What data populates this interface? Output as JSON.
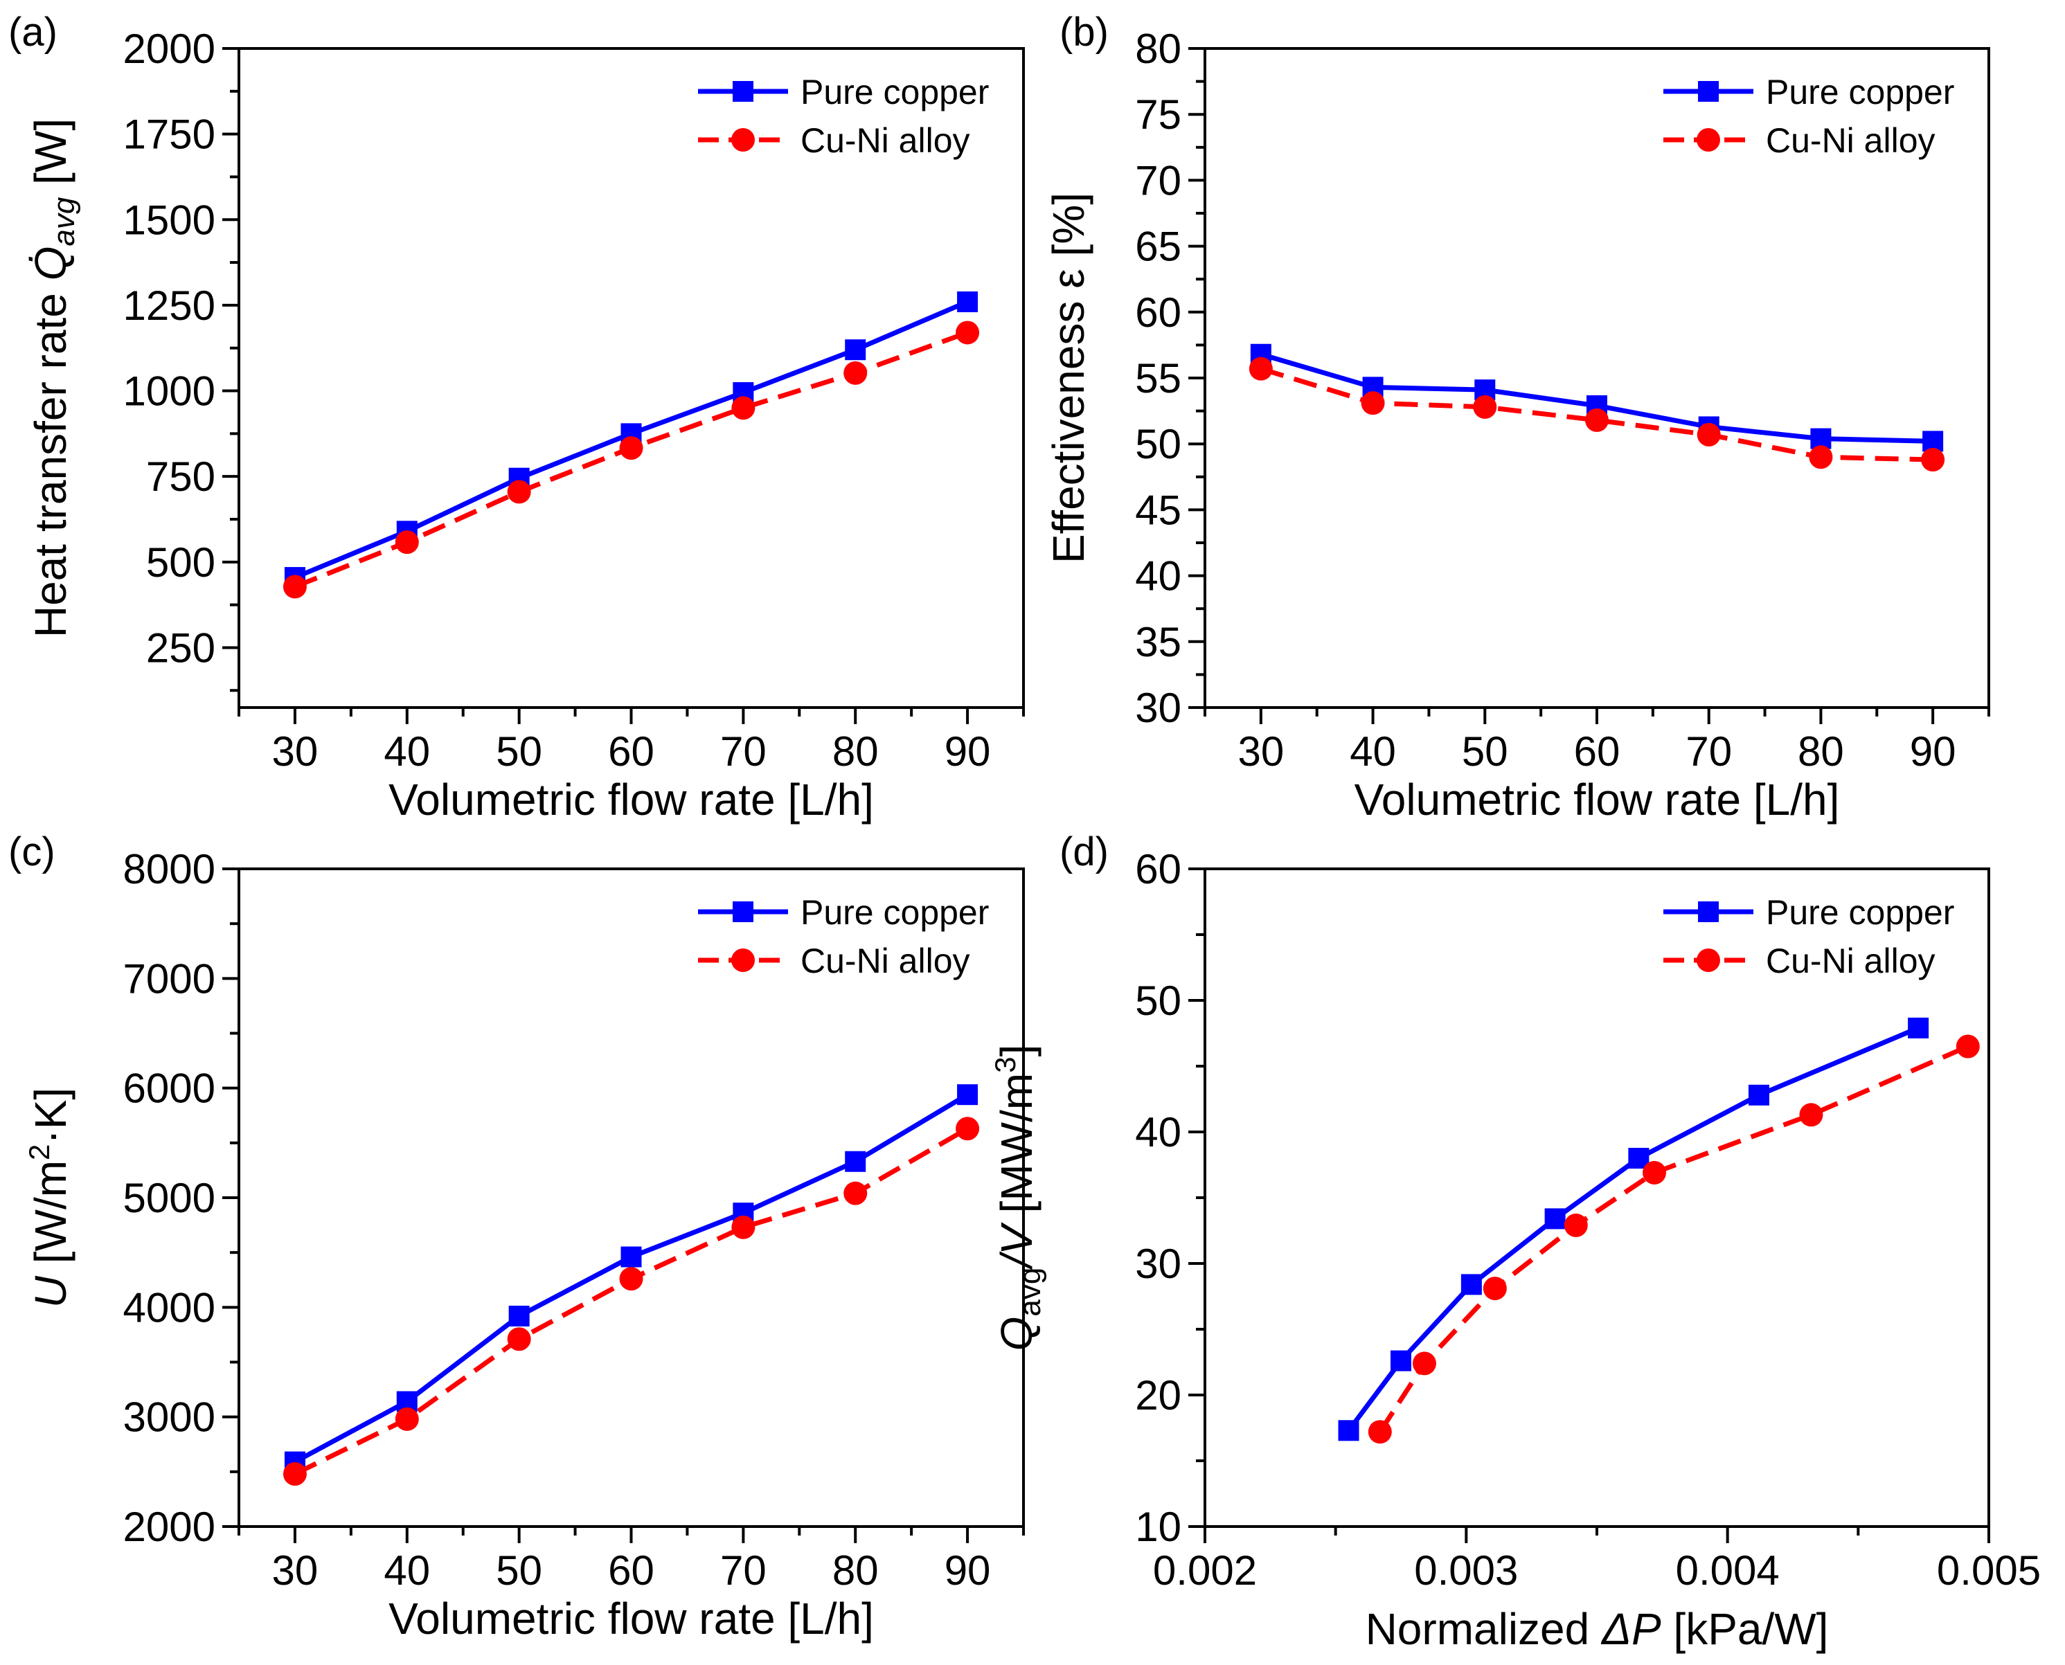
{
  "chart_data": [
    {
      "panel_label": "(a)",
      "type": "line",
      "x": [
        30,
        40,
        50,
        60,
        70,
        80,
        90
      ],
      "xlim": [
        25,
        95
      ],
      "xticks": [
        "30",
        "40",
        "50",
        "60",
        "70",
        "80",
        "90"
      ],
      "xlabel": "Volumetric flow rate [L/h]",
      "ylabel": "Heat transfer rate Q̇avg [W]",
      "ylabel_parts": {
        "main": "Heat transfer rate ",
        "symbol": "Q̇",
        "sub": "avg",
        "unit": " [W]"
      },
      "ylim": [
        75,
        2000
      ],
      "yticks": [
        "250",
        "500",
        "750",
        "1000",
        "1250",
        "1500",
        "1750",
        "2000"
      ],
      "legend_position": "top-right",
      "series": [
        {
          "name": "Pure copper",
          "color": "#0000ff",
          "marker": "square",
          "dash": "solid",
          "values": [
            455,
            590,
            745,
            875,
            995,
            1120,
            1260
          ]
        },
        {
          "name": "Cu-Ni alloy",
          "color": "#ff0000",
          "marker": "circle",
          "dash": "dashed",
          "values": [
            428,
            558,
            705,
            833,
            950,
            1052,
            1170
          ]
        }
      ]
    },
    {
      "panel_label": "(b)",
      "type": "line",
      "x": [
        30,
        40,
        50,
        60,
        70,
        80,
        90
      ],
      "xlim": [
        25,
        95
      ],
      "xticks": [
        "30",
        "40",
        "50",
        "60",
        "70",
        "80",
        "90"
      ],
      "xlabel": "Volumetric flow rate [L/h]",
      "ylabel": "Effectiveness ε [%]",
      "ylim": [
        30,
        80
      ],
      "yticks": [
        "30",
        "35",
        "40",
        "45",
        "50",
        "55",
        "60",
        "65",
        "70",
        "75",
        "80"
      ],
      "legend_position": "top-right",
      "series": [
        {
          "name": "Pure copper",
          "color": "#0000ff",
          "marker": "square",
          "dash": "solid",
          "values": [
            56.8,
            54.3,
            54.1,
            52.9,
            51.3,
            50.4,
            50.2
          ]
        },
        {
          "name": "Cu-Ni alloy",
          "color": "#ff0000",
          "marker": "circle",
          "dash": "dashed",
          "values": [
            55.7,
            53.1,
            52.8,
            51.8,
            50.7,
            49.0,
            48.8
          ]
        }
      ]
    },
    {
      "panel_label": "(c)",
      "type": "line",
      "x": [
        30,
        40,
        50,
        60,
        70,
        80,
        90
      ],
      "xlim": [
        25,
        95
      ],
      "xticks": [
        "30",
        "40",
        "50",
        "60",
        "70",
        "80",
        "90"
      ],
      "xlabel": "Volumetric flow rate [L/h]",
      "ylabel": "U [W/m2·K]",
      "ylabel_parts": {
        "symbol": "U",
        "pre": " [W/m",
        "sup": "2",
        "post": "·K]"
      },
      "ylim": [
        2000,
        8000
      ],
      "yticks": [
        "2000",
        "3000",
        "4000",
        "5000",
        "6000",
        "7000",
        "8000"
      ],
      "legend_position": "top-right",
      "series": [
        {
          "name": "Pure copper",
          "color": "#0000ff",
          "marker": "square",
          "dash": "solid",
          "values": [
            2590,
            3140,
            3920,
            4460,
            4860,
            5330,
            5940
          ]
        },
        {
          "name": "Cu-Ni alloy",
          "color": "#ff0000",
          "marker": "circle",
          "dash": "dashed",
          "values": [
            2480,
            2980,
            3710,
            4260,
            4730,
            5040,
            5630
          ]
        }
      ]
    },
    {
      "panel_label": "(d)",
      "type": "line",
      "xlim": [
        0.002,
        0.005
      ],
      "xticks": [
        "0.002",
        "0.003",
        "0.004",
        "0.005"
      ],
      "xlabel": "Normalized ΔP [kPa/W]",
      "xlabel_parts": {
        "pre": "Normalized ",
        "symbol": "ΔP",
        "post": " [kPa/W]"
      },
      "ylabel": "Qavg/V [MW/m3]",
      "ylabel_parts": {
        "symbol": "Q",
        "sub": "avg",
        "mid_symbol": "/V",
        "pre": " [MW/m",
        "sup": "3",
        "post": "]"
      },
      "ylim": [
        10,
        60
      ],
      "yticks": [
        "10",
        "20",
        "30",
        "40",
        "50",
        "60"
      ],
      "legend_position": "top-right",
      "series": [
        {
          "name": "Pure copper",
          "color": "#0000ff",
          "marker": "square",
          "dash": "solid",
          "x": [
            0.00255,
            0.00275,
            0.00302,
            0.00334,
            0.00366,
            0.00412,
            0.00473
          ],
          "values": [
            17.3,
            22.6,
            28.4,
            33.4,
            38.0,
            42.8,
            47.9
          ]
        },
        {
          "name": "Cu-Ni alloy",
          "color": "#ff0000",
          "marker": "circle",
          "dash": "dashed",
          "x": [
            0.00267,
            0.00284,
            0.00311,
            0.00342,
            0.00372,
            0.00432,
            0.00492
          ],
          "values": [
            17.2,
            22.4,
            28.1,
            32.9,
            36.9,
            41.3,
            46.5
          ]
        }
      ]
    }
  ]
}
